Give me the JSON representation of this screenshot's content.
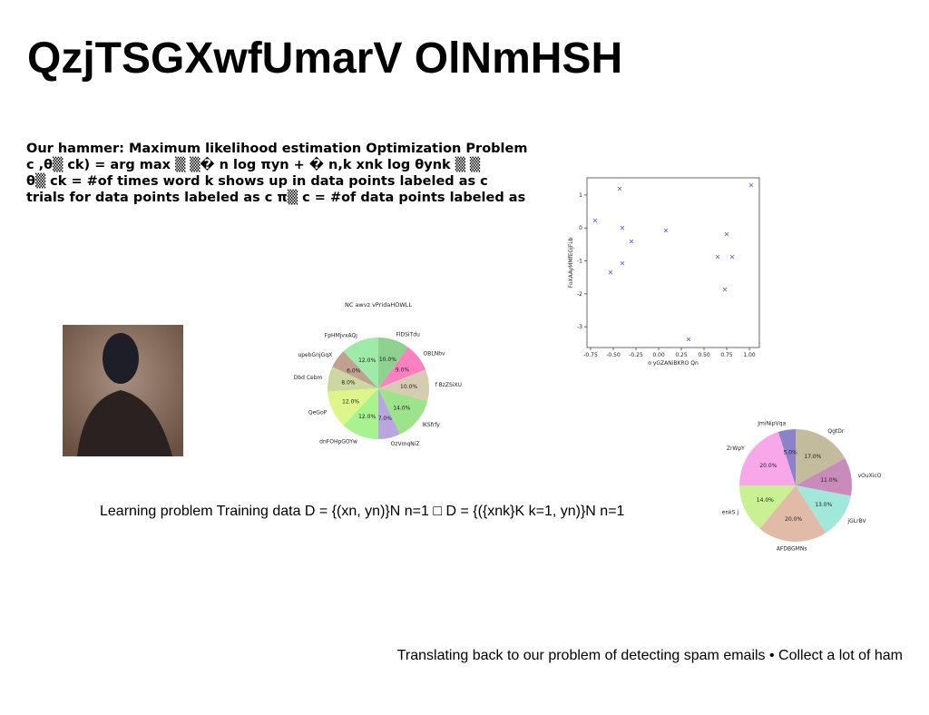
{
  "title": "QzjTSGXwfUmarV OlNmHSH",
  "body": [
    "Our hammer: Maximum likelihood estimation Optimization Problem",
    "c ,θ▒ ck) = arg max ▒ ▒� n log πyn + � n,k xnk log θynk ▒ ▒",
    "θ▒ ck = #of times word k shows up in data points labeled as c",
    "trials for data points labeled as c π▒ c = #of data points labeled as"
  ],
  "learning_text": "Learning problem Training data D = {(xn, yn)}N n=1 □ D = {({xnk}K k=1, yn)}N n=1",
  "footer": "Translating back to our problem of detecting spam emails • Collect a lot of ham",
  "chart_data": [
    {
      "type": "scatter",
      "xlabel": "o yGZANiBKRO Qn",
      "ylabel": "FoXAAyMMfEGjFLb",
      "color": "#6a6ad0",
      "x": [
        -0.7,
        -0.43,
        -0.4,
        -0.3,
        -0.53,
        -0.4,
        0.08,
        0.33,
        0.65,
        0.75,
        0.81,
        0.73,
        1.02
      ],
      "y": [
        0.22,
        1.19,
        0.0,
        -0.41,
        -1.35,
        -1.07,
        -0.08,
        -3.38,
        -0.88,
        -0.19,
        -0.88,
        -1.87,
        1.3
      ],
      "xlim": [
        -0.79,
        1.11
      ],
      "ylim": [
        -3.63,
        1.52
      ],
      "xticks": [
        -0.75,
        {
          "value": -0.5,
          "label": "-0.50"
        },
        -0.25,
        {
          "value": 0,
          "label": "0.00"
        },
        0.25,
        {
          "value": 0.5,
          "label": "0.50"
        },
        0.75,
        {
          "value": 1,
          "label": "1.00"
        }
      ],
      "yticks": [
        -3,
        -2,
        -1,
        0,
        1
      ]
    },
    {
      "type": "pie",
      "title": "NC awvz vPridaHOWLL",
      "categories": [
        "FlDSiTdu",
        "OBLNbv",
        "f BzZSiXU",
        "lKSfrfy",
        "OzVmqNiZ",
        "dnFOHpGOYw",
        "QeGoP",
        "Dbd Cebm",
        "upebGnjGqX",
        "FpHMjvxAQj"
      ],
      "values": [
        10,
        9,
        10,
        14,
        7,
        12,
        12,
        8,
        6,
        12
      ],
      "value_labels": [
        "10.0%",
        "9.0%",
        "10.0%",
        "14.0%",
        "7.0%",
        "12.0%",
        "12.0%",
        "8.0%",
        "6.0%",
        "12.0%"
      ],
      "colors": [
        "#8fd18f",
        "#ff80c0",
        "#d5ccb2",
        "#9de38a",
        "#b9a6e0",
        "#a8f28f",
        "#ddf68a",
        "#cdd8a0",
        "#c0a08f",
        "#9eeaa8"
      ]
    },
    {
      "type": "pie",
      "categories": [
        "QgtDr",
        "vOuXicO",
        "jGLrBV",
        "AFDBGMNs",
        "enkS j",
        "ZrWpY",
        "JmiNipVqa"
      ],
      "values": [
        17,
        11,
        13,
        20,
        14,
        20,
        5
      ],
      "value_labels": [
        "17.0%",
        "11.0%",
        "13.0%",
        "20.0%",
        "14.0%",
        "20.0%",
        "5.0%"
      ],
      "colors": [
        "#c2bb9c",
        "#c98cba",
        "#a2e8da",
        "#e2baa8",
        "#c9f092",
        "#f8a8e8",
        "#8c82ca"
      ]
    }
  ]
}
